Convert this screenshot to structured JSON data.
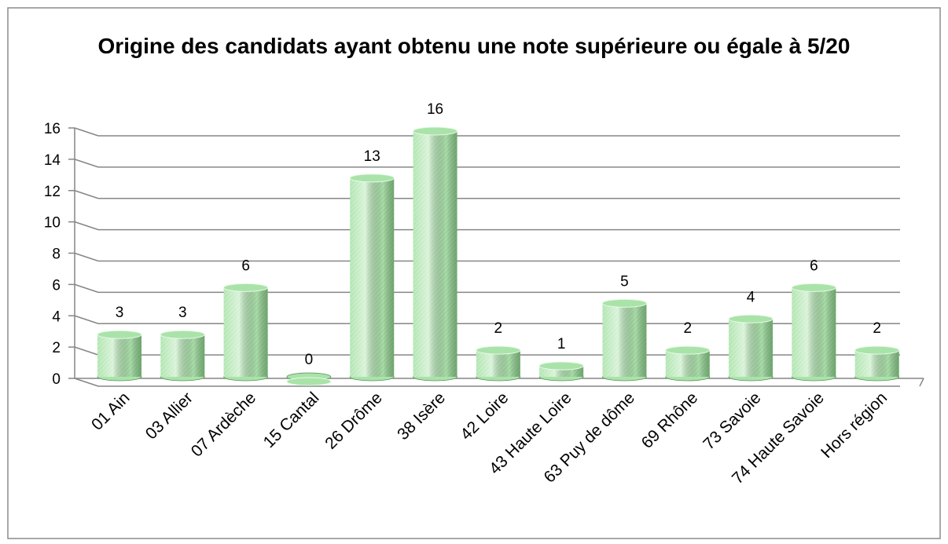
{
  "chart_data": {
    "type": "bar",
    "title": "Origine des candidats ayant obtenu une note supérieure ou égale à 5/20",
    "categories": [
      "01 Ain",
      "03 Allier",
      "07 Ardèche",
      "15 Cantal",
      "26 Drôme",
      "38 Isère",
      "42 Loire",
      "43 Haute Loire",
      "63 Puy de dôme",
      "69 Rhône",
      "73 Savoie",
      "74 Haute Savoie",
      "Hors région"
    ],
    "values": [
      3,
      3,
      6,
      0,
      13,
      16,
      2,
      1,
      5,
      2,
      4,
      6,
      2
    ],
    "color": "#a9e3a9",
    "ylim": [
      0,
      16
    ],
    "yticks": [
      0,
      2,
      4,
      6,
      8,
      10,
      12,
      14,
      16
    ],
    "grid": true
  }
}
